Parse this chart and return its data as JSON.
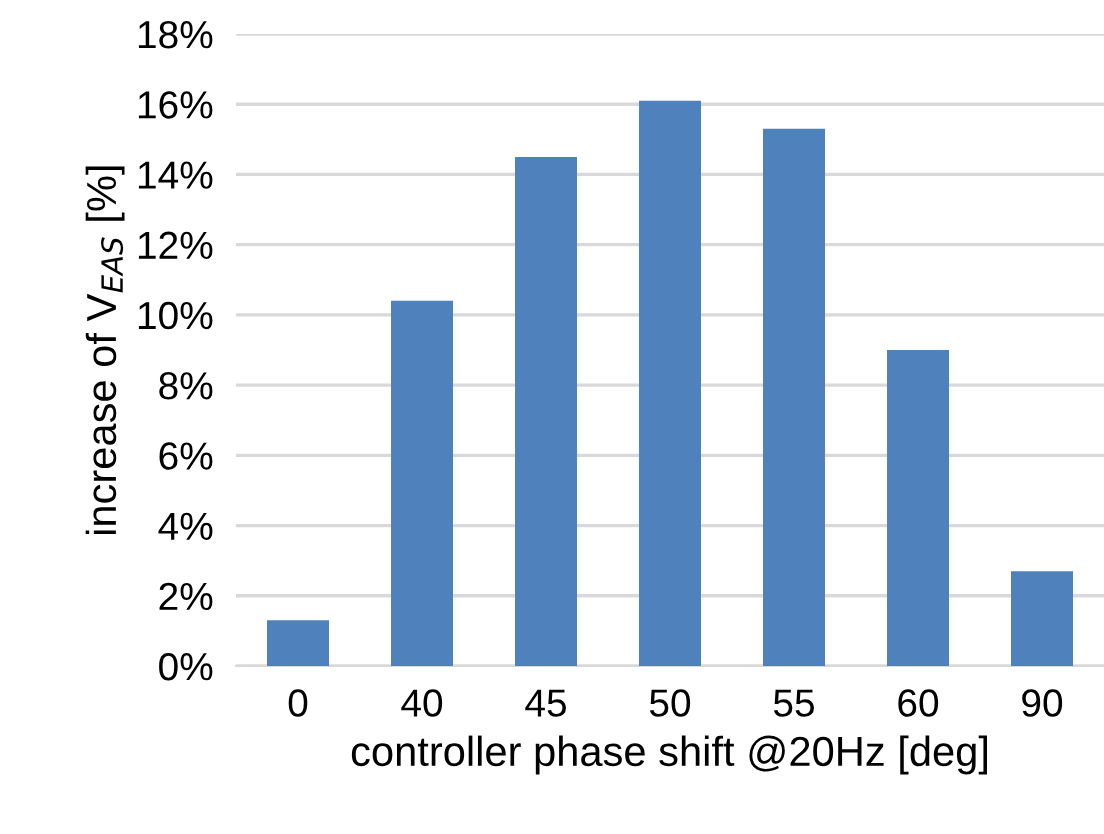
{
  "chart_data": {
    "type": "bar",
    "xlabel": "controller phase shift @20Hz [deg]",
    "ylabel": "increase of V$_{EAS}$ [%]",
    "categories": [
      "0",
      "40",
      "45",
      "50",
      "55",
      "60",
      "90"
    ],
    "values": [
      1.3,
      10.4,
      14.5,
      16.1,
      15.3,
      9.0,
      2.7
    ],
    "color": "#4f81bd",
    "ylim": [
      0,
      18
    ],
    "yticks": [
      {
        "value": 0,
        "label": "0%"
      },
      {
        "value": 2,
        "label": "2%"
      },
      {
        "value": 4,
        "label": "4%"
      },
      {
        "value": 6,
        "label": "6%"
      },
      {
        "value": 8,
        "label": "8%"
      },
      {
        "value": 10,
        "label": "10%"
      },
      {
        "value": 12,
        "label": "12%"
      },
      {
        "value": 14,
        "label": "14%"
      },
      {
        "value": 16,
        "label": "16%"
      },
      {
        "value": 18,
        "label": "18%"
      }
    ],
    "grid": "y",
    "legend": false
  }
}
